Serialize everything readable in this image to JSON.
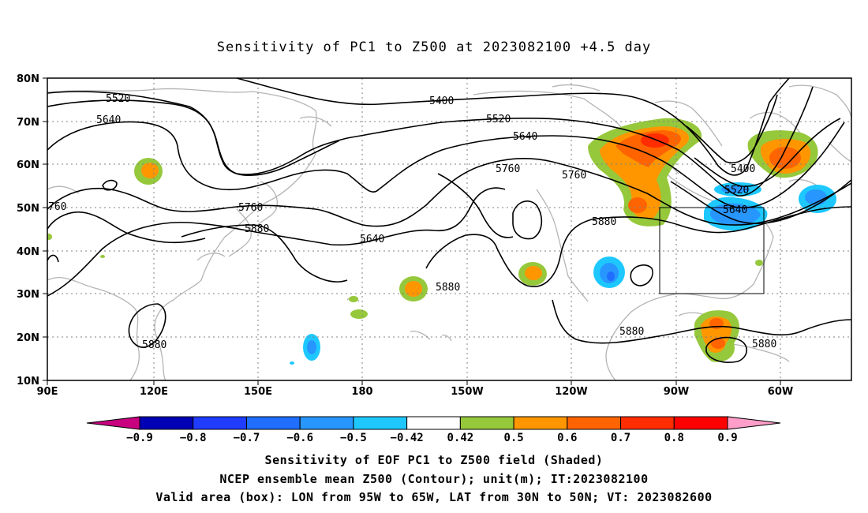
{
  "title": "Sensitivity of PC1 to Z500 at 2023082100 +4.5 day",
  "axes": {
    "lat_labels": [
      "80N",
      "70N",
      "60N",
      "50N",
      "40N",
      "30N",
      "20N",
      "10N"
    ],
    "lon_labels": [
      "90E",
      "120E",
      "150E",
      "180",
      "150W",
      "120W",
      "90W",
      "60W"
    ],
    "lon_range_deg_east": [
      90,
      310
    ],
    "lat_range": [
      10,
      80
    ],
    "grid": "dotted"
  },
  "contour_labels": {
    "c5520a": "5520",
    "c5640a": "5640",
    "c5400": "5400",
    "c5520b": "5520",
    "c5640b": "5640",
    "c5760a": "5760",
    "c5760b": "5760",
    "c5760c": "760",
    "c5880a": "5880",
    "c5640c": "5640",
    "c5880b": "5880",
    "c5880c": "5880",
    "c5400b": "5400",
    "c5520c": "5520",
    "c5640d": "5640",
    "c5880d": "5880",
    "c5880e": "5880",
    "c5760d": "5760"
  },
  "colorbar": {
    "labels": [
      "-0.9",
      "-0.8",
      "-0.7",
      "-0.6",
      "-0.5",
      "-0.42",
      "0.42",
      "0.5",
      "0.6",
      "0.7",
      "0.8",
      "0.9"
    ],
    "colors": [
      "#c8007f",
      "#0000b4",
      "#1f3cff",
      "#1f6eff",
      "#2896ff",
      "#1ec8ff",
      "#ffffff",
      "#96c83c",
      "#ff9600",
      "#ff6400",
      "#ff2d00",
      "#ff0000",
      "#ff9ec8"
    ]
  },
  "valid_box": {
    "lon_west": -95,
    "lon_east": -65,
    "lat_south": 30,
    "lat_north": 50
  },
  "captions": {
    "line1": "Sensitivity of EOF PC1 to Z500 field (Shaded)",
    "line2": "NCEP ensemble mean Z500 (Contour); unit(m); IT:2023082100",
    "line3": "Valid area (box): LON from 95W to 65W, LAT from 30N to 50N; VT: 2023082600"
  }
}
